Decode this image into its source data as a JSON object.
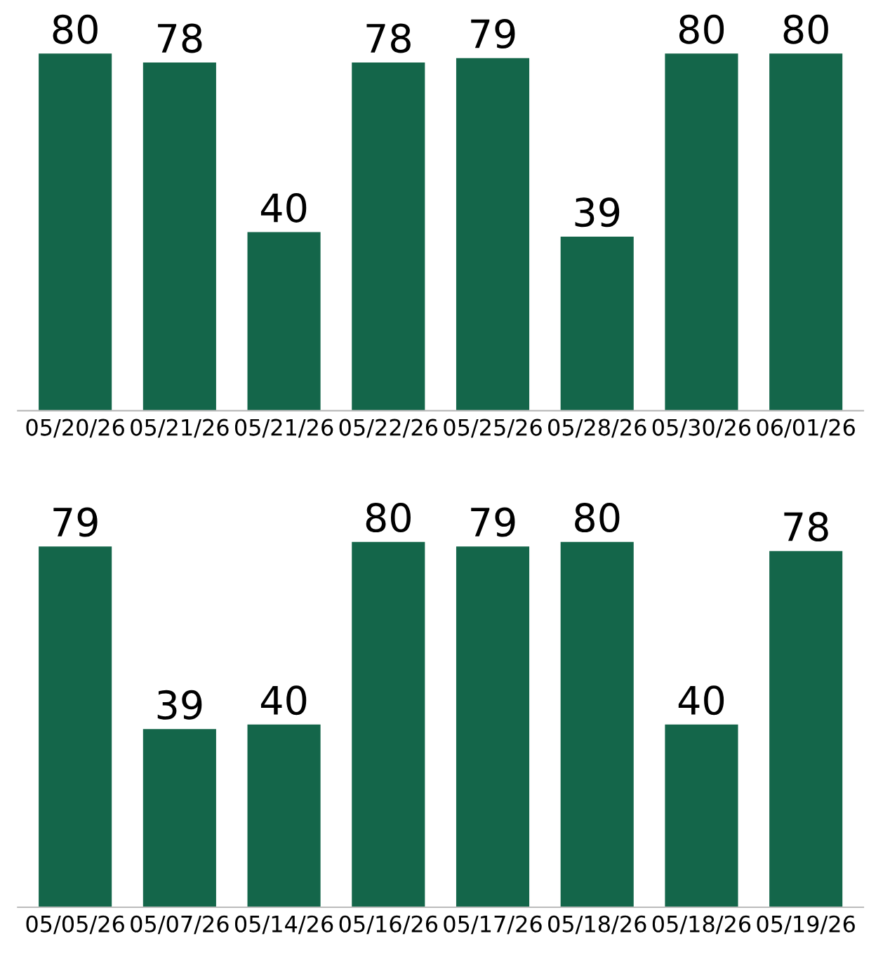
{
  "chart_data": [
    {
      "type": "bar",
      "categories": [
        "05/20/26",
        "05/21/26",
        "05/21/26",
        "05/22/26",
        "05/25/26",
        "05/28/26",
        "05/30/26",
        "06/01/26"
      ],
      "values": [
        80,
        78,
        40,
        78,
        79,
        39,
        80,
        80
      ],
      "color": "#14664a",
      "data_labels": true,
      "grid": false,
      "legend": false
    },
    {
      "type": "bar",
      "categories": [
        "05/05/26",
        "05/07/26",
        "05/14/26",
        "05/16/26",
        "05/17/26",
        "05/18/26",
        "05/18/26",
        "05/19/26"
      ],
      "values": [
        79,
        39,
        40,
        80,
        79,
        80,
        40,
        78
      ],
      "color": "#14664a",
      "data_labels": true,
      "grid": false,
      "legend": false
    }
  ]
}
